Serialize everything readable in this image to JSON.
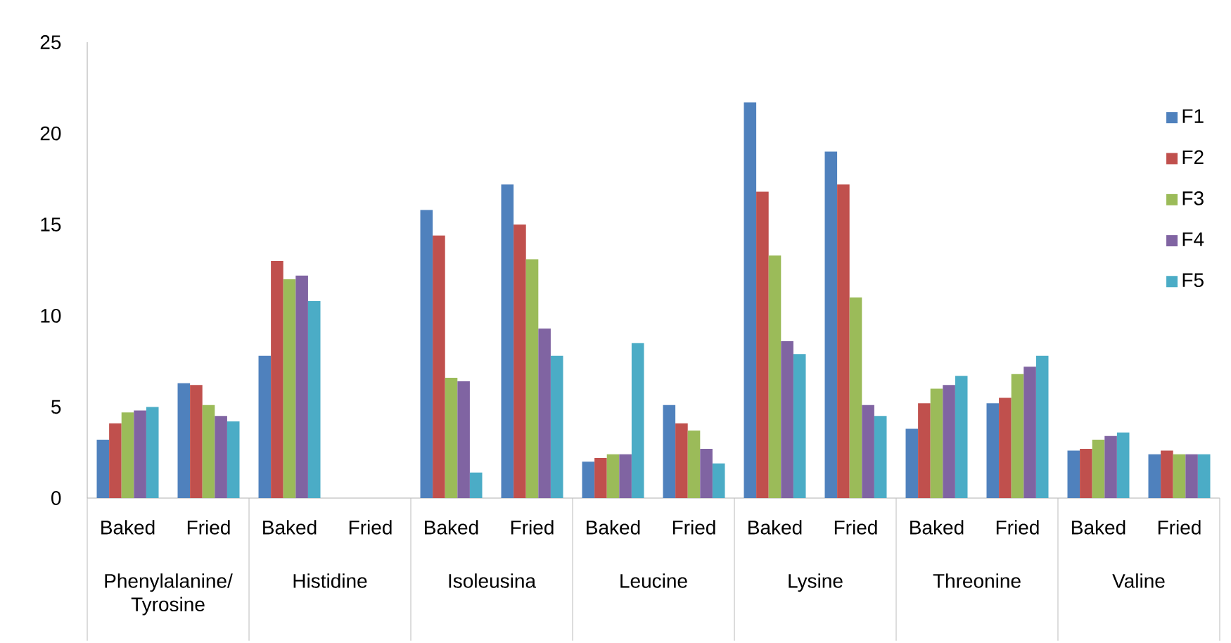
{
  "chart_data": {
    "type": "bar",
    "categories": [
      "Baked",
      "Fried",
      "Baked",
      "Fried",
      "Baked",
      "Fried",
      "Baked",
      "Fried",
      "Baked",
      "Fried",
      "Baked",
      "Fried",
      "Baked",
      "Fried"
    ],
    "series": [
      {
        "name": "F1",
        "color": "#4f81bd",
        "values": [
          3.2,
          6.3,
          7.8,
          null,
          15.8,
          17.2,
          2.0,
          5.1,
          21.7,
          19.0,
          3.8,
          5.2,
          2.6,
          2.4
        ]
      },
      {
        "name": "F2",
        "color": "#c0504d",
        "values": [
          4.1,
          6.2,
          13.0,
          null,
          14.4,
          15.0,
          2.2,
          4.1,
          16.8,
          17.2,
          5.2,
          5.5,
          2.7,
          2.6
        ]
      },
      {
        "name": "F3",
        "color": "#9bbb59",
        "values": [
          4.7,
          5.1,
          12.0,
          null,
          6.6,
          13.1,
          2.4,
          3.7,
          13.3,
          11.0,
          6.0,
          6.8,
          3.2,
          2.4
        ]
      },
      {
        "name": "F4",
        "color": "#8064a2",
        "values": [
          4.8,
          4.5,
          12.2,
          null,
          6.4,
          9.3,
          2.4,
          2.7,
          8.6,
          5.1,
          6.2,
          7.2,
          3.4,
          2.4
        ]
      },
      {
        "name": "F5",
        "color": "#4bacc6",
        "values": [
          5.0,
          4.2,
          10.8,
          null,
          1.4,
          7.8,
          8.5,
          1.9,
          7.9,
          4.5,
          6.7,
          7.8,
          3.6,
          2.4
        ]
      }
    ],
    "ylim": [
      0,
      25
    ],
    "yticks": [
      0,
      5,
      10,
      15,
      20,
      25
    ],
    "legend": "right",
    "annotations": [
      "Phenylalanine/ Tyrosine",
      "Histidine",
      "Isoleusina",
      "Leucine",
      "Lysine",
      "Threonine",
      "Valine"
    ]
  }
}
